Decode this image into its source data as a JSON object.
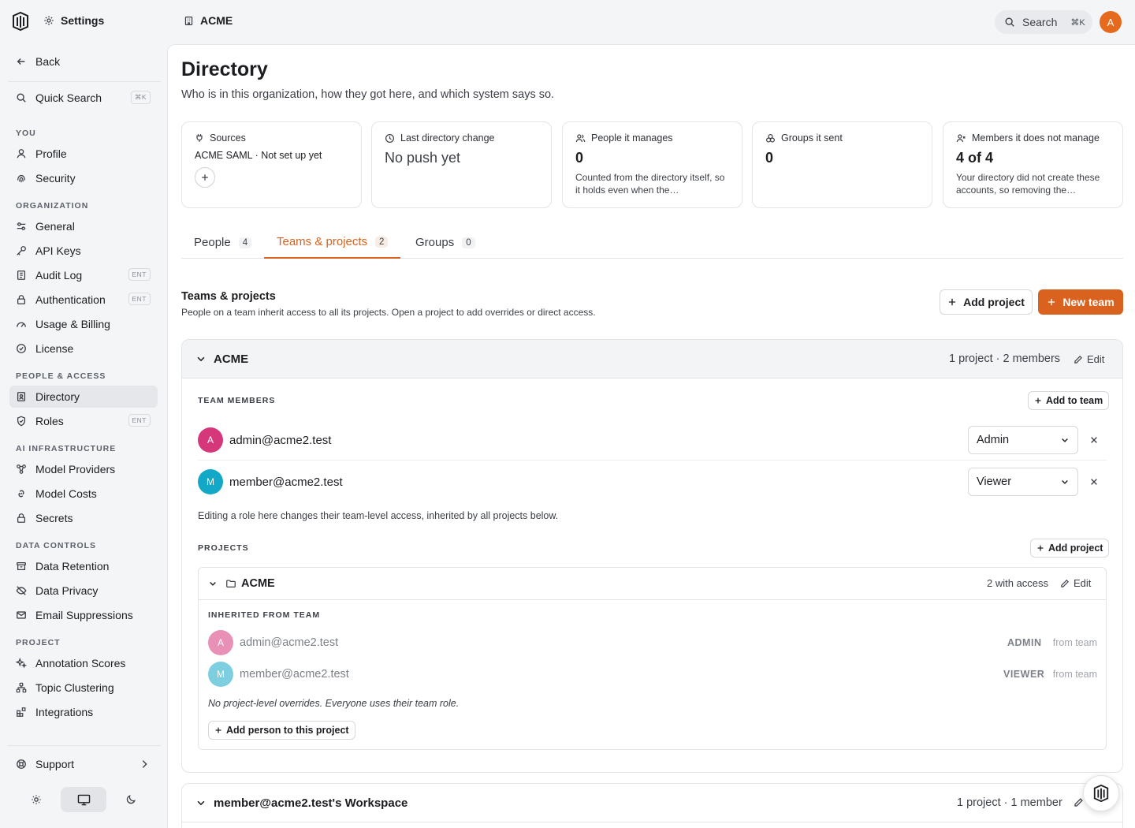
{
  "header": {
    "app_label": "Settings",
    "breadcrumb": "ACME",
    "search_label": "Search",
    "search_shortcut": "⌘K",
    "avatar_initial": "A"
  },
  "sidebar": {
    "back_label": "Back",
    "quick_search_label": "Quick Search",
    "quick_search_shortcut": "⌘K",
    "sections": {
      "you": "YOU",
      "organization": "ORGANIZATION",
      "people": "PEOPLE & ACCESS",
      "ai": "AI INFRASTRUCTURE",
      "data": "DATA CONTROLS",
      "project": "PROJECT"
    },
    "items": {
      "profile": "Profile",
      "security": "Security",
      "general": "General",
      "api_keys": "API Keys",
      "audit_log": "Audit Log",
      "authentication": "Authentication",
      "usage_billing": "Usage & Billing",
      "license": "License",
      "directory": "Directory",
      "roles": "Roles",
      "model_providers": "Model Providers",
      "model_costs": "Model Costs",
      "secrets": "Secrets",
      "data_retention": "Data Retention",
      "data_privacy": "Data Privacy",
      "email_suppressions": "Email Suppressions",
      "annotation_scores": "Annotation Scores",
      "topic_clustering": "Topic Clustering",
      "integrations": "Integrations",
      "support": "Support"
    },
    "ent_badge": "ENT"
  },
  "page": {
    "title": "Directory",
    "subtitle": "Who is in this organization, how they got here, and which system says so."
  },
  "cards": {
    "sources": {
      "label": "Sources",
      "value": "ACME SAML · Not set up yet"
    },
    "last_change": {
      "label": "Last directory change",
      "value": "No push yet"
    },
    "manages": {
      "label": "People it manages",
      "value": "0",
      "note": "Counted from the directory itself, so it holds even when the…"
    },
    "groups_sent": {
      "label": "Groups it sent",
      "value": "0"
    },
    "not_managed": {
      "label": "Members it does not manage",
      "value": "4 of 4",
      "note": "Your directory did not create these accounts, so removing the…"
    }
  },
  "tabs": [
    {
      "label": "People",
      "count": "4"
    },
    {
      "label": "Teams & projects",
      "count": "2"
    },
    {
      "label": "Groups",
      "count": "0"
    }
  ],
  "section": {
    "title": "Teams & projects",
    "description": "People on a team inherit access to all its projects. Open a project to add overrides or direct access.",
    "add_project_label": "Add project",
    "new_team_label": "New team"
  },
  "team": {
    "name": "ACME",
    "meta": "1 project · 2 members",
    "edit_label": "Edit",
    "members_heading": "TEAM MEMBERS",
    "add_to_team_label": "Add to team",
    "members": [
      {
        "initial": "A",
        "email": "admin@acme2.test",
        "role": "Admin",
        "color": "#d6367a"
      },
      {
        "initial": "M",
        "email": "member@acme2.test",
        "role": "Viewer",
        "color": "#13a8c7"
      }
    ],
    "hint": "Editing a role here changes their team-level access, inherited by all projects below.",
    "projects_heading": "PROJECTS",
    "add_project_label": "Add project",
    "project": {
      "name": "ACME",
      "access": "2 with access",
      "edit_label": "Edit",
      "inherited_heading": "INHERITED FROM TEAM",
      "inherited": [
        {
          "initial": "A",
          "email": "admin@acme2.test",
          "role": "ADMIN",
          "from": "from team"
        },
        {
          "initial": "M",
          "email": "member@acme2.test",
          "role": "VIEWER",
          "from": "from team"
        }
      ],
      "no_overrides": "No project-level overrides. Everyone uses their team role.",
      "add_person_label": "Add person to this project"
    }
  },
  "team2": {
    "name": "member@acme2.test's Workspace",
    "meta": "1 project · 1 member"
  },
  "colors": {
    "accent": "#d9621f",
    "avatar_top": "#e56a1e"
  }
}
